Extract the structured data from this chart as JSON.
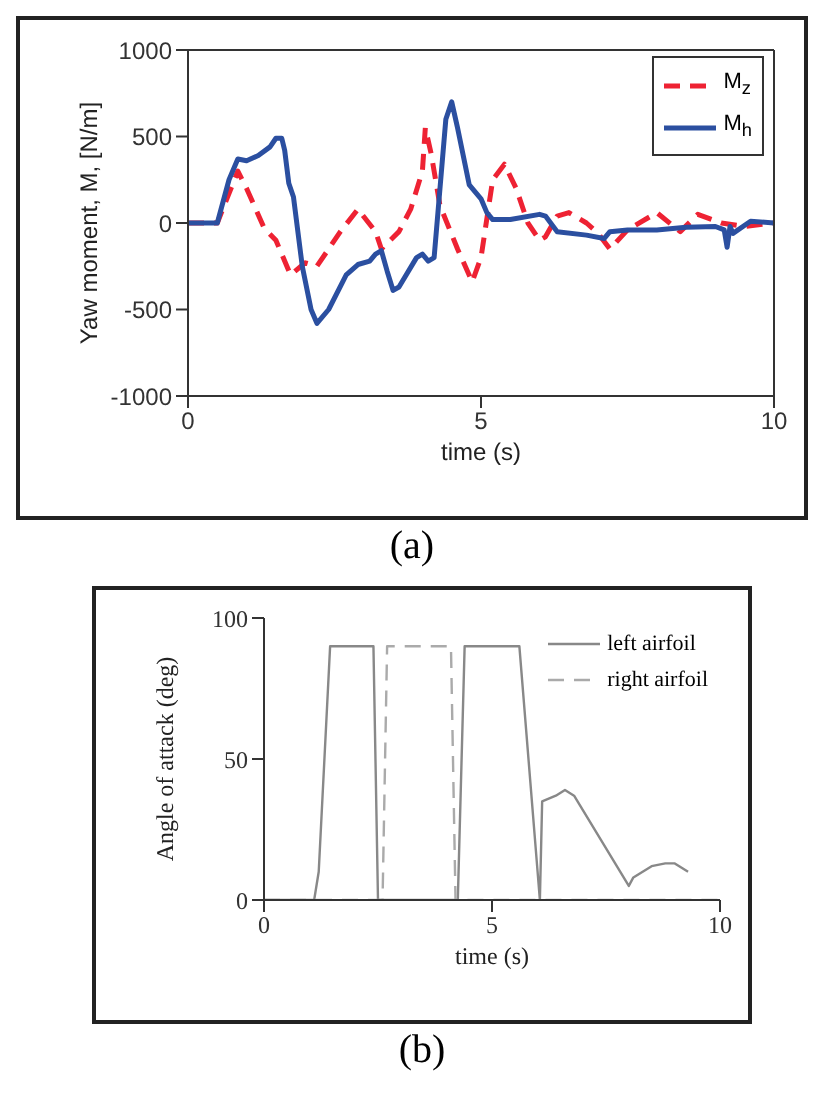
{
  "chart_data": [
    {
      "type": "line",
      "xlabel": "time (s)",
      "ylabel": "Yaw moment, M,  [N/m]",
      "xlim": [
        0,
        10
      ],
      "ylim": [
        -1000,
        1000
      ],
      "xticks": [
        0,
        5,
        10
      ],
      "yticks": [
        -1000,
        -500,
        0,
        500,
        1000
      ],
      "grid": false,
      "legend": "top right",
      "annotations": [
        "(a)"
      ],
      "series": [
        {
          "name": "M$_{z}$",
          "color": "#ee2233",
          "line_style": "dashed",
          "x": [
            0,
            0.5,
            0.85,
            1.0,
            1.3,
            1.5,
            1.7,
            1.75,
            2.0,
            2.2,
            2.6,
            2.9,
            3.2,
            3.3,
            3.6,
            3.8,
            4.0,
            4.05,
            4.15,
            4.3,
            4.6,
            4.85,
            5.0,
            5.2,
            5.4,
            5.6,
            5.8,
            6.0,
            6.1,
            6.3,
            6.5,
            6.8,
            7.0,
            7.2,
            7.5,
            8.0,
            8.4,
            8.7,
            9.1,
            9.5,
            10
          ],
          "values": [
            0,
            0,
            300,
            200,
            -30,
            -100,
            -260,
            -300,
            -230,
            -250,
            -50,
            80,
            -50,
            -150,
            -50,
            80,
            300,
            550,
            400,
            100,
            -150,
            -340,
            -200,
            250,
            340,
            200,
            0,
            -100,
            -80,
            40,
            60,
            0,
            -60,
            -150,
            -40,
            60,
            -50,
            50,
            0,
            -20,
            0
          ]
        },
        {
          "name": "M$_{h}$",
          "color": "#2b4fa0",
          "line_style": "solid",
          "x": [
            0,
            0.5,
            0.7,
            0.85,
            1.0,
            1.2,
            1.4,
            1.5,
            1.6,
            1.65,
            1.72,
            1.8,
            1.95,
            2.1,
            2.2,
            2.4,
            2.7,
            2.9,
            3.1,
            3.2,
            3.3,
            3.4,
            3.5,
            3.6,
            3.9,
            4.0,
            4.1,
            4.2,
            4.3,
            4.4,
            4.5,
            4.6,
            4.8,
            5.0,
            5.1,
            5.2,
            5.5,
            6.0,
            6.1,
            6.3,
            6.8,
            7.1,
            7.2,
            7.5,
            8.0,
            8.5,
            9.0,
            9.15,
            9.2,
            9.25,
            9.3,
            9.6,
            10
          ],
          "values": [
            0,
            0,
            250,
            370,
            360,
            390,
            440,
            490,
            490,
            420,
            230,
            150,
            -250,
            -500,
            -580,
            -500,
            -300,
            -240,
            -220,
            -180,
            -160,
            -280,
            -390,
            -370,
            -200,
            -180,
            -220,
            -200,
            200,
            600,
            700,
            550,
            220,
            140,
            60,
            20,
            20,
            50,
            40,
            -50,
            -70,
            -90,
            -50,
            -40,
            -40,
            -25,
            -20,
            -40,
            -140,
            -20,
            -60,
            10,
            0
          ]
        }
      ]
    },
    {
      "type": "line",
      "xlabel": "time (s)",
      "ylabel": "Angle of attack (deg)",
      "xlim": [
        0,
        10
      ],
      "ylim": [
        0,
        100
      ],
      "xticks": [
        0,
        5,
        10
      ],
      "yticks": [
        0,
        50,
        100
      ],
      "grid": false,
      "legend": "top right",
      "annotations": [
        "(b)"
      ],
      "series": [
        {
          "name": "left airfoil",
          "color": "#888888",
          "line_style": "solid",
          "x": [
            0,
            1.1,
            1.2,
            1.45,
            2.4,
            2.5,
            4.25,
            4.4,
            5.6,
            6.05,
            6.1,
            6.4,
            6.6,
            6.8,
            8.0,
            8.1,
            8.5,
            8.8,
            9.0,
            9.3
          ],
          "values": [
            0,
            0,
            10,
            90,
            90,
            0,
            0,
            90,
            90,
            0,
            35,
            37,
            39,
            37,
            5,
            8,
            12,
            13,
            13,
            10
          ]
        },
        {
          "name": "right airfoil",
          "color": "#aaaaaa",
          "line_style": "dashed",
          "x": [
            0,
            2.6,
            2.7,
            4.1,
            4.2,
            10
          ],
          "values": [
            0,
            0,
            90,
            90,
            0,
            0
          ]
        }
      ]
    }
  ]
}
